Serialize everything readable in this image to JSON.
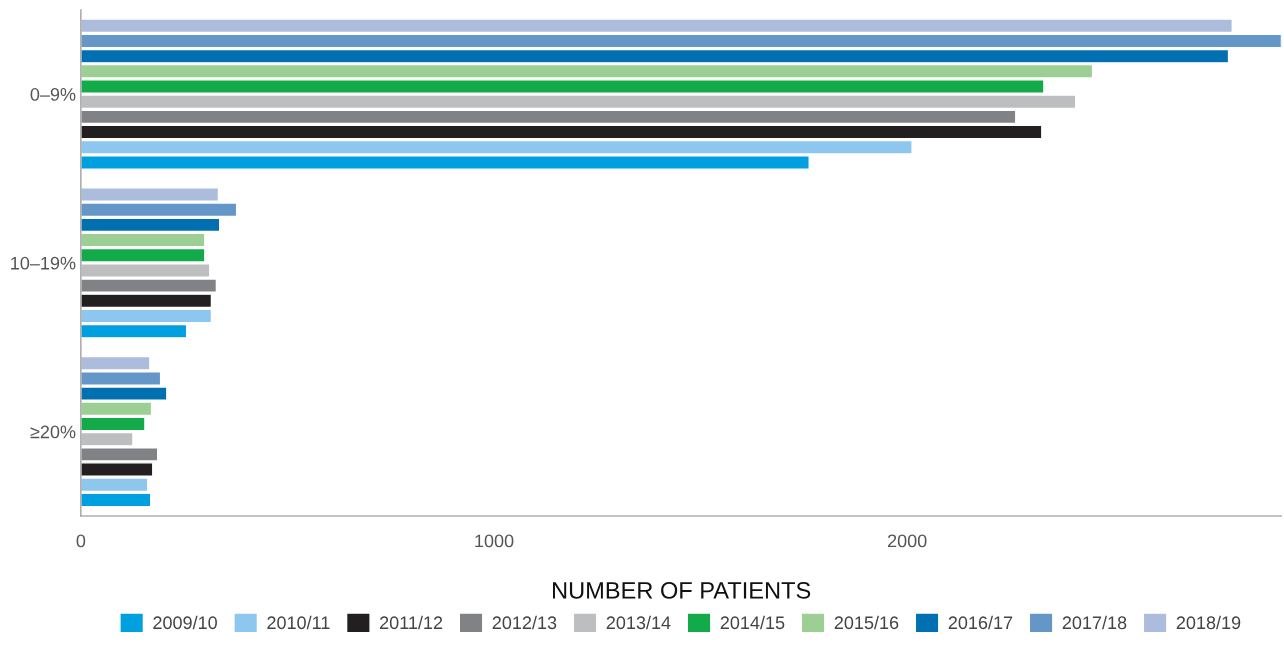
{
  "chart_data": {
    "type": "bar",
    "orientation": "horizontal",
    "xlabel": "NUMBER OF PATIENTS",
    "categories": [
      "0–9%",
      "10–19%",
      "≥20%"
    ],
    "series": [
      {
        "name": "2009/10",
        "color": "#009fdf",
        "values": [
          1763,
          256,
          169
        ]
      },
      {
        "name": "2010/11",
        "color": "#8dc6ee",
        "values": [
          2012,
          316,
          162
        ]
      },
      {
        "name": "2011/12",
        "color": "#231f20",
        "values": [
          2326,
          316,
          174
        ]
      },
      {
        "name": "2012/13",
        "color": "#808285",
        "values": [
          2263,
          328,
          186
        ]
      },
      {
        "name": "2013/14",
        "color": "#bcbec0",
        "values": [
          2408,
          312,
          126
        ]
      },
      {
        "name": "2014/15",
        "color": "#13aa4a",
        "values": [
          2331,
          300,
          155
        ]
      },
      {
        "name": "2015/16",
        "color": "#9ccf94",
        "values": [
          2449,
          300,
          171
        ]
      },
      {
        "name": "2016/17",
        "color": "#0070b0",
        "values": [
          2778,
          336,
          208
        ]
      },
      {
        "name": "2017/18",
        "color": "#6497c8",
        "values": [
          2906,
          377,
          193
        ]
      },
      {
        "name": "2018/19",
        "color": "#abbcdd",
        "values": [
          2787,
          333,
          167
        ]
      }
    ],
    "xlim": [
      0,
      2906
    ],
    "xticks": [
      0,
      1000,
      2000
    ],
    "grid": false,
    "legend": "bottom"
  }
}
